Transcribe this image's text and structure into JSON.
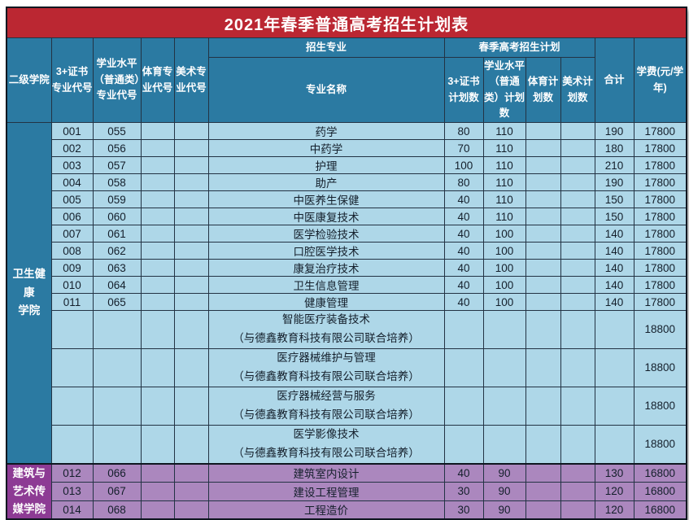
{
  "title": "2021年春季普通高考招生计划表",
  "columns": {
    "college": "二级学院",
    "cert_code": "3+证书专业代号",
    "level_code": "学业水平（普通类）专业代号",
    "pe_code": "体育专业代号",
    "art_code": "美术专业代号",
    "enroll_major_group": "招生专业",
    "major_name": "专业名称",
    "spring_plan_group": "春季高考招生计划",
    "cert_plan": "3+证书计划数",
    "level_plan": "学业水平（普通类）计划数",
    "pe_plan": "体育计划数",
    "art_plan": "美术计划数",
    "total": "合计",
    "fee": "学费(元/学年)"
  },
  "colors": {
    "title_bg": "#bb2732",
    "header_bg": "#2b7aa2",
    "blue_row_bg": "#aed7e8",
    "blue_college_bg": "#2b7aa2",
    "purple_row_bg": "#ab87be",
    "purple_college_bg": "#8d3b94",
    "border": "#233344",
    "text_dark": "#141f2b",
    "text_light": "#ffffff"
  },
  "sections": [
    {
      "college": "卫生健康学院",
      "college_lines": [
        "卫生健康",
        "学院"
      ],
      "theme": "blue",
      "rows": [
        {
          "cert_code": "001",
          "level_code": "055",
          "name": "药学",
          "cert_plan": "80",
          "level_plan": "110",
          "total": "190",
          "fee": "17800"
        },
        {
          "cert_code": "002",
          "level_code": "056",
          "name": "中药学",
          "cert_plan": "70",
          "level_plan": "110",
          "total": "180",
          "fee": "17800"
        },
        {
          "cert_code": "003",
          "level_code": "057",
          "name": "护理",
          "cert_plan": "100",
          "level_plan": "110",
          "total": "210",
          "fee": "17800"
        },
        {
          "cert_code": "004",
          "level_code": "058",
          "name": "助产",
          "cert_plan": "80",
          "level_plan": "110",
          "total": "190",
          "fee": "17800"
        },
        {
          "cert_code": "005",
          "level_code": "059",
          "name": "中医养生保健",
          "cert_plan": "40",
          "level_plan": "110",
          "total": "150",
          "fee": "17800"
        },
        {
          "cert_code": "006",
          "level_code": "060",
          "name": "中医康复技术",
          "cert_plan": "40",
          "level_plan": "110",
          "total": "150",
          "fee": "17800"
        },
        {
          "cert_code": "007",
          "level_code": "061",
          "name": "医学检验技术",
          "cert_plan": "40",
          "level_plan": "100",
          "total": "140",
          "fee": "17800"
        },
        {
          "cert_code": "008",
          "level_code": "062",
          "name": "口腔医学技术",
          "cert_plan": "40",
          "level_plan": "100",
          "total": "140",
          "fee": "17800"
        },
        {
          "cert_code": "009",
          "level_code": "063",
          "name": "康复治疗技术",
          "cert_plan": "40",
          "level_plan": "100",
          "total": "140",
          "fee": "17800"
        },
        {
          "cert_code": "010",
          "level_code": "064",
          "name": "卫生信息管理",
          "cert_plan": "40",
          "level_plan": "100",
          "total": "140",
          "fee": "17800"
        },
        {
          "cert_code": "011",
          "level_code": "065",
          "name": "健康管理",
          "cert_plan": "40",
          "level_plan": "100",
          "total": "140",
          "fee": "17800"
        },
        {
          "name": "智能医疗装备技术",
          "subname": "（与德鑫教育科技有限公司联合培养）",
          "fee": "18800"
        },
        {
          "name": "医疗器械维护与管理",
          "subname": "（与德鑫教育科技有限公司联合培养）",
          "fee": "18800"
        },
        {
          "name": "医疗器械经营与服务",
          "subname": "（与德鑫教育科技有限公司联合培养）",
          "fee": "18800"
        },
        {
          "name": "医学影像技术",
          "subname": "（与德鑫教育科技有限公司联合培养）",
          "fee": "18800"
        }
      ]
    },
    {
      "college": "建筑与艺术传媒学院",
      "college_lines": [
        "建筑与",
        "艺术传",
        "媒学院"
      ],
      "theme": "purple",
      "rows": [
        {
          "cert_code": "012",
          "level_code": "066",
          "name": "建筑室内设计",
          "cert_plan": "40",
          "level_plan": "90",
          "total": "130",
          "fee": "16800"
        },
        {
          "cert_code": "013",
          "level_code": "067",
          "name": "建设工程管理",
          "cert_plan": "30",
          "level_plan": "90",
          "total": "120",
          "fee": "16800"
        },
        {
          "cert_code": "014",
          "level_code": "068",
          "name": "工程造价",
          "cert_plan": "30",
          "level_plan": "90",
          "total": "120",
          "fee": "16800"
        }
      ]
    }
  ]
}
